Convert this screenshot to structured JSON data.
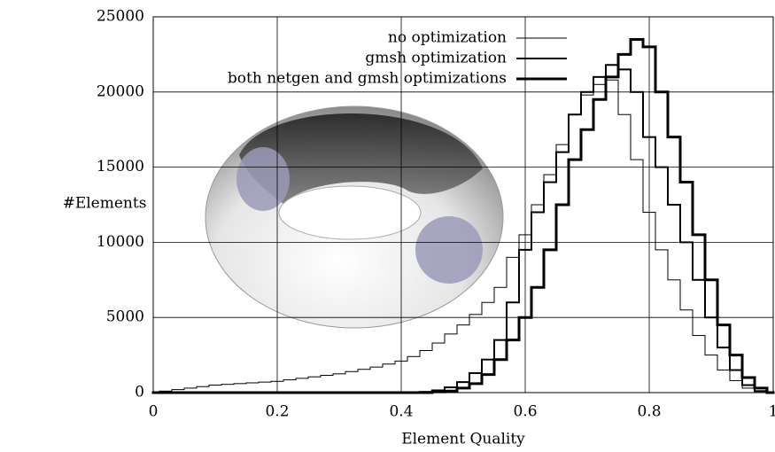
{
  "chart_data": {
    "type": "step",
    "x_label": "Element Quality",
    "y_label": "#Elements",
    "xlim": [
      0,
      1
    ],
    "ylim": [
      0,
      25000
    ],
    "xticks": [
      0,
      0.2,
      0.4,
      0.6,
      0.8,
      1
    ],
    "yticks": [
      0,
      5000,
      10000,
      15000,
      20000,
      25000
    ],
    "grid": true,
    "legend": "top-right",
    "x": [
      0,
      0.02,
      0.04,
      0.06,
      0.08,
      0.1,
      0.12,
      0.14,
      0.16,
      0.18,
      0.2,
      0.22,
      0.24,
      0.26,
      0.28,
      0.3,
      0.32,
      0.34,
      0.36,
      0.38,
      0.4,
      0.42,
      0.44,
      0.46,
      0.48,
      0.5,
      0.52,
      0.54,
      0.56,
      0.58,
      0.6,
      0.62,
      0.64,
      0.66,
      0.68,
      0.7,
      0.72,
      0.74,
      0.76,
      0.78,
      0.8,
      0.82,
      0.84,
      0.86,
      0.88,
      0.9,
      0.92,
      0.94,
      0.96,
      0.98,
      1
    ],
    "series": [
      {
        "name": "no optimization",
        "color": "#000000",
        "width": 1,
        "values": [
          0,
          100,
          200,
          300,
          400,
          500,
          550,
          600,
          650,
          700,
          750,
          850,
          950,
          1050,
          1150,
          1250,
          1400,
          1550,
          1700,
          1900,
          2100,
          2400,
          2800,
          3300,
          3900,
          4500,
          5200,
          6000,
          7000,
          9000,
          10500,
          12500,
          14500,
          16500,
          18500,
          19800,
          20500,
          20800,
          18500,
          15500,
          12000,
          9500,
          7500,
          5500,
          3800,
          2500,
          1500,
          800,
          300,
          80,
          0
        ]
      },
      {
        "name": "gmsh optimization",
        "color": "#000000",
        "width": 2,
        "values": [
          0,
          0,
          0,
          0,
          0,
          0,
          0,
          0,
          0,
          0,
          0,
          0,
          0,
          0,
          0,
          0,
          0,
          0,
          0,
          0,
          0,
          0,
          50,
          150,
          350,
          700,
          1300,
          2200,
          3500,
          6000,
          9500,
          12000,
          14000,
          16000,
          18500,
          20000,
          21000,
          21800,
          21500,
          20000,
          17000,
          15000,
          12500,
          10000,
          7500,
          5000,
          3000,
          1500,
          500,
          100,
          0
        ]
      },
      {
        "name": "both netgen and gmsh optimizations",
        "color": "#000000",
        "width": 3,
        "values": [
          0,
          0,
          0,
          0,
          0,
          0,
          0,
          0,
          0,
          0,
          0,
          0,
          0,
          0,
          0,
          0,
          0,
          0,
          0,
          0,
          0,
          0,
          0,
          50,
          100,
          300,
          600,
          1200,
          2200,
          3500,
          5000,
          7000,
          9500,
          12500,
          15500,
          17500,
          19500,
          21000,
          22500,
          23500,
          23000,
          20000,
          17000,
          14000,
          10500,
          7500,
          4500,
          2500,
          1000,
          300,
          0
        ]
      }
    ]
  }
}
